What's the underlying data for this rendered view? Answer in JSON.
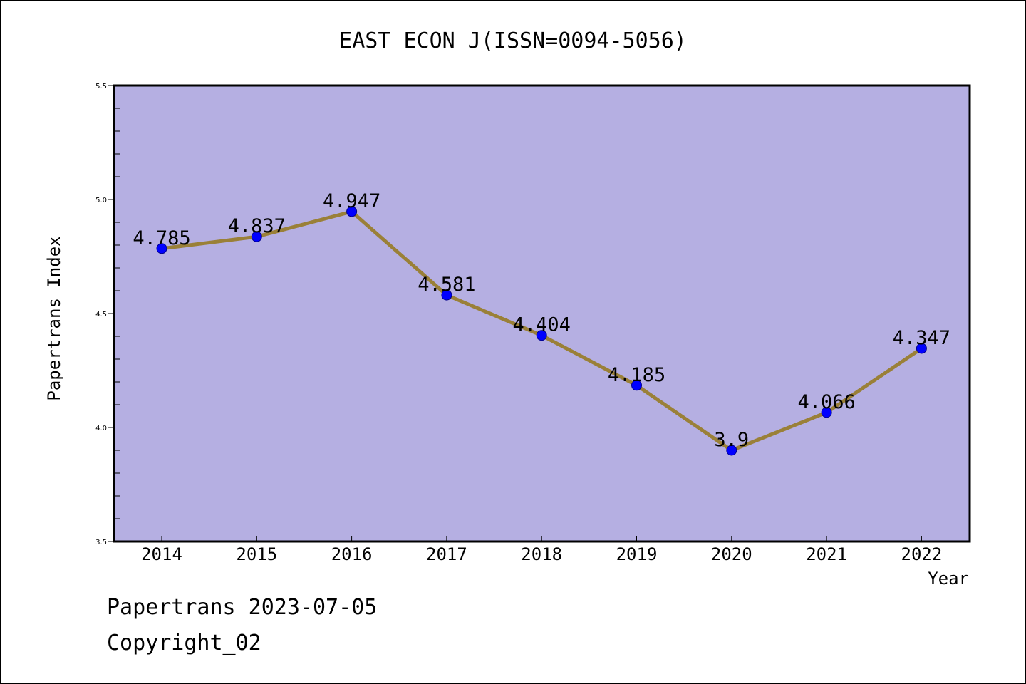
{
  "chart_data": {
    "type": "line",
    "title": "EAST ECON J(ISSN=0094-5056)",
    "xlabel": "Year",
    "ylabel": "Papertrans Index",
    "categories": [
      "2014",
      "2015",
      "2016",
      "2017",
      "2018",
      "2019",
      "2020",
      "2021",
      "2022"
    ],
    "series": [
      {
        "values": [
          4.785,
          4.837,
          4.947,
          4.581,
          4.404,
          4.185,
          3.9,
          4.066,
          4.347
        ],
        "labels": [
          "4.785",
          "4.837",
          "4.947",
          "4.581",
          "4.404",
          "4.185",
          "3.9",
          "4.066",
          "4.347"
        ]
      }
    ],
    "ylim": [
      3.5,
      5.5
    ],
    "yticks": [
      "3.5",
      "4.0",
      "4.5",
      "5.0",
      "5.5"
    ],
    "grid": false,
    "colors": {
      "plot_background": "#b5afe2",
      "line": "#9a8038",
      "marker": "#0000ff"
    }
  },
  "footer": {
    "line1": "Papertrans 2023-07-05",
    "line2": "Copyright_02"
  }
}
